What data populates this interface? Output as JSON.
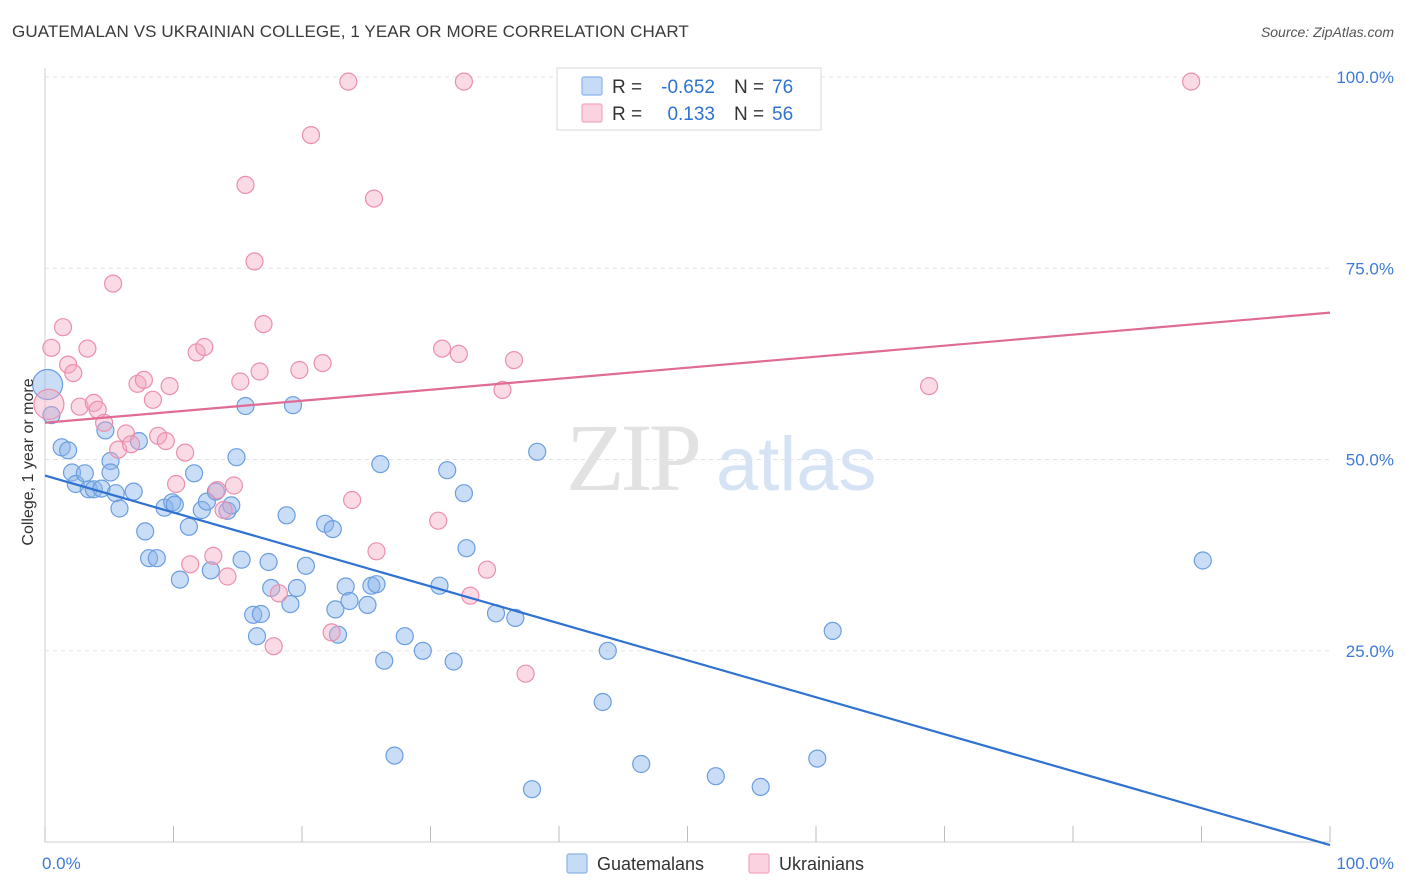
{
  "title": "GUATEMALAN VS UKRAINIAN COLLEGE, 1 YEAR OR MORE CORRELATION CHART",
  "source": "Source: ZipAtlas.com",
  "watermark": {
    "zip": "ZIP",
    "atlas": "atlas"
  },
  "legend_box": {
    "rows": [
      {
        "r_label": "R =",
        "r_value": "-0.652",
        "n_label": "N =",
        "n_value": "76",
        "color": "#8ab4ea"
      },
      {
        "r_label": "R =",
        "r_value": "0.133",
        "n_label": "N =",
        "n_value": "56",
        "color": "#f3a6c0"
      }
    ]
  },
  "bottom_legend": [
    {
      "label": "Guatemalans",
      "color": "#8ab4ea"
    },
    {
      "label": "Ukrainians",
      "color": "#f3a6c0"
    }
  ],
  "chart_data": {
    "type": "scatter",
    "title": "GUATEMALAN VS UKRAINIAN COLLEGE, 1 YEAR OR MORE CORRELATION CHART",
    "xlabel": "",
    "ylabel": "College, 1 year or more",
    "xlim": [
      0,
      100
    ],
    "ylim": [
      0,
      100
    ],
    "x_tick_labels": [
      "0.0%",
      "100.0%"
    ],
    "y_tick_labels": [
      "25.0%",
      "50.0%",
      "75.0%",
      "100.0%"
    ],
    "y_ticks": [
      25,
      50,
      75,
      100
    ],
    "grid": true,
    "series": [
      {
        "name": "Guatemalans",
        "color": "#8ab4ea",
        "stroke": "#6a9ee0",
        "trend_color": "#2f72d0",
        "R": -0.652,
        "N": 76,
        "trend": {
          "x": [
            0,
            100
          ],
          "y": [
            47.9,
            -0.4
          ]
        },
        "points": [
          [
            0.2,
            59.8
          ],
          [
            0.5,
            55.8
          ],
          [
            1.3,
            51.6
          ],
          [
            1.8,
            51.2
          ],
          [
            2.1,
            48.3
          ],
          [
            2.4,
            46.8
          ],
          [
            3.1,
            48.2
          ],
          [
            3.4,
            46.1
          ],
          [
            3.8,
            46.1
          ],
          [
            4.4,
            46.2
          ],
          [
            4.7,
            53.8
          ],
          [
            5.1,
            49.8
          ],
          [
            5.1,
            48.3
          ],
          [
            5.5,
            45.6
          ],
          [
            5.8,
            43.6
          ],
          [
            6.9,
            45.8
          ],
          [
            7.3,
            52.4
          ],
          [
            7.8,
            40.6
          ],
          [
            8.1,
            37.1
          ],
          [
            8.7,
            37.1
          ],
          [
            9.3,
            43.7
          ],
          [
            9.9,
            44.4
          ],
          [
            10.1,
            44.1
          ],
          [
            10.5,
            34.3
          ],
          [
            11.2,
            41.2
          ],
          [
            11.6,
            48.2
          ],
          [
            12.2,
            43.4
          ],
          [
            12.6,
            44.5
          ],
          [
            12.9,
            35.5
          ],
          [
            13.3,
            45.8
          ],
          [
            14.2,
            43.3
          ],
          [
            14.5,
            44.0
          ],
          [
            14.9,
            50.3
          ],
          [
            15.3,
            36.9
          ],
          [
            15.6,
            57.0
          ],
          [
            16.2,
            29.7
          ],
          [
            16.5,
            26.9
          ],
          [
            16.8,
            29.8
          ],
          [
            17.4,
            36.6
          ],
          [
            17.6,
            33.2
          ],
          [
            18.8,
            42.7
          ],
          [
            19.1,
            31.1
          ],
          [
            19.3,
            57.1
          ],
          [
            19.6,
            33.2
          ],
          [
            20.3,
            36.1
          ],
          [
            21.8,
            41.6
          ],
          [
            22.4,
            40.9
          ],
          [
            22.6,
            30.4
          ],
          [
            22.8,
            27.1
          ],
          [
            23.4,
            33.4
          ],
          [
            23.7,
            31.5
          ],
          [
            25.1,
            31.0
          ],
          [
            25.4,
            33.5
          ],
          [
            25.8,
            33.7
          ],
          [
            26.1,
            49.4
          ],
          [
            26.4,
            23.7
          ],
          [
            27.2,
            11.3
          ],
          [
            28.0,
            26.9
          ],
          [
            29.4,
            25.0
          ],
          [
            30.7,
            33.5
          ],
          [
            31.3,
            48.6
          ],
          [
            31.8,
            23.6
          ],
          [
            32.6,
            45.6
          ],
          [
            32.8,
            38.4
          ],
          [
            35.1,
            29.9
          ],
          [
            36.6,
            29.3
          ],
          [
            37.9,
            6.9
          ],
          [
            38.3,
            51.0
          ],
          [
            43.8,
            25.0
          ],
          [
            43.4,
            18.3
          ],
          [
            46.4,
            10.2
          ],
          [
            52.2,
            8.6
          ],
          [
            55.7,
            7.2
          ],
          [
            60.1,
            10.9
          ],
          [
            61.3,
            27.6
          ],
          [
            90.1,
            36.8
          ]
        ]
      },
      {
        "name": "Ukrainians",
        "color": "#f3a6c0",
        "stroke": "#ec8fad",
        "trend_color": "#e06b95",
        "R": 0.133,
        "N": 56,
        "trend": {
          "x": [
            0,
            100
          ],
          "y": [
            54.8,
            69.2
          ]
        },
        "points": [
          [
            0.3,
            57.2
          ],
          [
            0.5,
            64.6
          ],
          [
            1.4,
            67.3
          ],
          [
            1.8,
            62.4
          ],
          [
            2.2,
            61.3
          ],
          [
            2.7,
            56.9
          ],
          [
            3.3,
            64.5
          ],
          [
            3.8,
            57.4
          ],
          [
            4.1,
            56.5
          ],
          [
            4.6,
            54.8
          ],
          [
            5.3,
            73.0
          ],
          [
            5.7,
            51.3
          ],
          [
            6.3,
            53.4
          ],
          [
            6.7,
            52.0
          ],
          [
            7.2,
            59.9
          ],
          [
            7.7,
            60.4
          ],
          [
            8.4,
            57.8
          ],
          [
            8.8,
            53.1
          ],
          [
            9.4,
            52.4
          ],
          [
            9.7,
            59.6
          ],
          [
            10.2,
            46.8
          ],
          [
            10.9,
            50.9
          ],
          [
            11.3,
            36.3
          ],
          [
            11.8,
            64.0
          ],
          [
            12.4,
            64.7
          ],
          [
            13.1,
            37.4
          ],
          [
            13.4,
            46.0
          ],
          [
            13.9,
            43.4
          ],
          [
            14.2,
            34.7
          ],
          [
            14.7,
            46.6
          ],
          [
            15.2,
            60.2
          ],
          [
            15.6,
            85.9
          ],
          [
            16.3,
            75.9
          ],
          [
            16.7,
            61.5
          ],
          [
            17.0,
            67.7
          ],
          [
            17.8,
            25.6
          ],
          [
            18.2,
            32.5
          ],
          [
            19.8,
            61.7
          ],
          [
            20.7,
            92.4
          ],
          [
            21.6,
            62.6
          ],
          [
            22.3,
            27.4
          ],
          [
            23.6,
            99.4
          ],
          [
            23.9,
            44.7
          ],
          [
            25.6,
            84.1
          ],
          [
            25.8,
            38.0
          ],
          [
            30.6,
            42.0
          ],
          [
            30.9,
            64.5
          ],
          [
            32.2,
            63.8
          ],
          [
            32.6,
            99.4
          ],
          [
            33.1,
            32.2
          ],
          [
            34.4,
            35.6
          ],
          [
            35.6,
            59.1
          ],
          [
            36.5,
            63.0
          ],
          [
            37.4,
            22.0
          ],
          [
            68.8,
            59.6
          ],
          [
            89.2,
            99.4
          ]
        ]
      }
    ]
  }
}
